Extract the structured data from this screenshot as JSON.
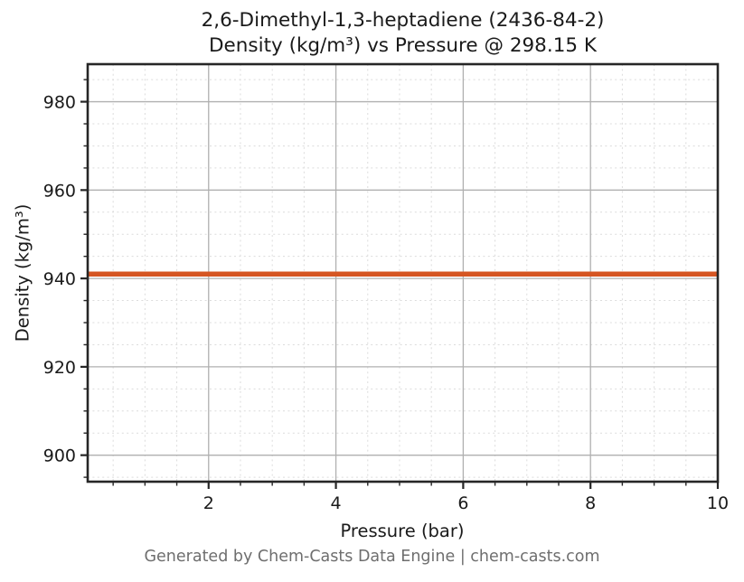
{
  "chart": {
    "title_line1": "2,6-Dimethyl-1,3-heptadiene (2436-84-2)",
    "title_line2": "Density (kg/m³) vs Pressure @ 298.15 K",
    "xlabel": "Pressure (bar)",
    "ylabel": "Density (kg/m³)",
    "footer": "Generated by Chem-Casts Data Engine | chem-casts.com"
  },
  "chart_data": {
    "type": "line",
    "title": "2,6-Dimethyl-1,3-heptadiene (2436-84-2)\nDensity (kg/m³) vs Pressure @ 298.15 K",
    "xlabel": "Pressure (bar)",
    "ylabel": "Density (kg/m³)",
    "xlim": [
      0.1,
      10
    ],
    "ylim": [
      894,
      988.5
    ],
    "x_major_ticks": [
      2,
      4,
      6,
      8,
      10
    ],
    "x_minor_tick_step": 0.5,
    "y_major_ticks": [
      900,
      920,
      940,
      960,
      980
    ],
    "y_minor_tick_step": 5,
    "grid": {
      "major": true,
      "minor": true
    },
    "legend_position": "none",
    "series": [
      {
        "name": "Density",
        "x": [
          0.1,
          10
        ],
        "y": [
          941.0,
          941.0
        ],
        "color": "#d55522",
        "linewidth": 5.5
      }
    ],
    "colors": {
      "major_grid": "#b0b0b0",
      "minor_grid": "#dcdcdc",
      "spine": "#262626",
      "tick_text": "#1a1a1a",
      "footer_text": "#6e6e6e",
      "background": "#ffffff"
    }
  }
}
